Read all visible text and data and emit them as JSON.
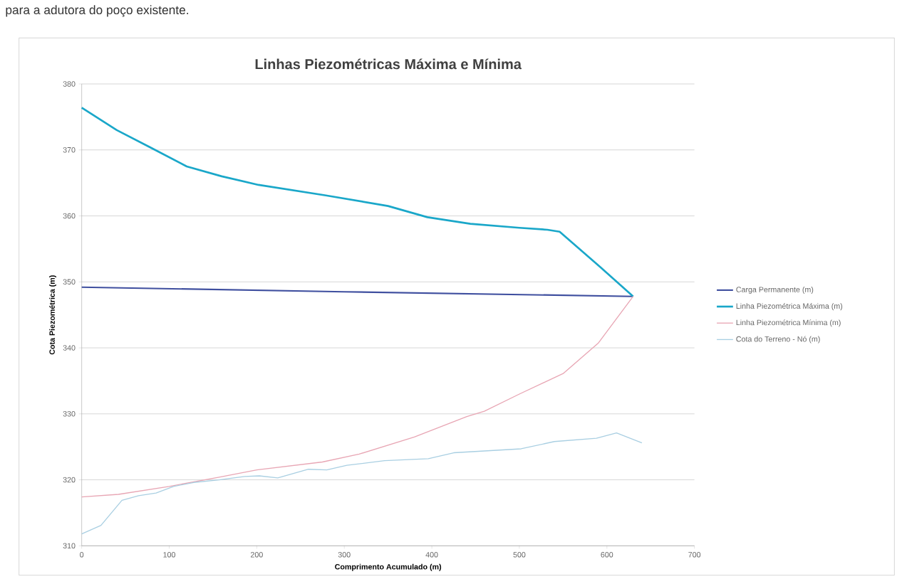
{
  "chart_data": {
    "type": "line",
    "title": "Linhas Piezométricas Máxima e Mínima",
    "xlabel": "Comprimento Acumulado (m)",
    "ylabel": "Cota Piezométrica (m)",
    "annotations": [
      "para a adutora do poço existente."
    ],
    "xlim": [
      0,
      700
    ],
    "xticks": [
      0,
      100,
      200,
      300,
      400,
      500,
      600,
      700
    ],
    "ylim": [
      310,
      380
    ],
    "yticks": [
      310,
      320,
      330,
      340,
      350,
      360,
      370,
      380
    ],
    "grid": "y",
    "legend": "right",
    "marker": "none",
    "line_style": "solid",
    "series": [
      {
        "name": "Carga Permanente (m)",
        "color": "#3f4f9f",
        "x": [
          0,
          300,
          630
        ],
        "values": [
          349.2,
          348.5,
          347.8
        ]
      },
      {
        "name": "Linha Piezométrica Máxima (m)",
        "color": "#1aa7c9",
        "x": [
          0,
          40,
          78,
          120,
          160,
          202,
          279,
          350,
          395,
          444,
          500,
          532,
          546,
          592,
          630
        ],
        "values": [
          376.4,
          373,
          370.4,
          367.5,
          366,
          364.7,
          363.1,
          361.5,
          359.8,
          358.8,
          358.2,
          357.9,
          357.6,
          352.3,
          347.8
        ]
      },
      {
        "name": "Linha Piezométrica Mínima (m)",
        "color": "#e8a6b4",
        "x": [
          0,
          42,
          100,
          157,
          200,
          275,
          317,
          380,
          440,
          460,
          500,
          550,
          590,
          630
        ],
        "values": [
          317.4,
          317.8,
          319,
          320.4,
          321.5,
          322.7,
          323.9,
          326.5,
          329.6,
          330.4,
          333,
          336.1,
          340.7,
          347.8
        ]
      },
      {
        "name": "Cota do Terreno - Nó (m)",
        "color": "#a9cfe2",
        "x": [
          0,
          22,
          46,
          65,
          85,
          105,
          128,
          157,
          186,
          203,
          224,
          259,
          280,
          303,
          346,
          396,
          425,
          502,
          540,
          588,
          611,
          640
        ],
        "values": [
          311.8,
          313.1,
          316.9,
          317.6,
          318,
          319,
          319.6,
          320,
          320.5,
          320.6,
          320.3,
          321.6,
          321.5,
          322.2,
          322.9,
          323.2,
          324.1,
          324.7,
          325.8,
          326.3,
          327.1,
          325.6
        ]
      }
    ]
  }
}
